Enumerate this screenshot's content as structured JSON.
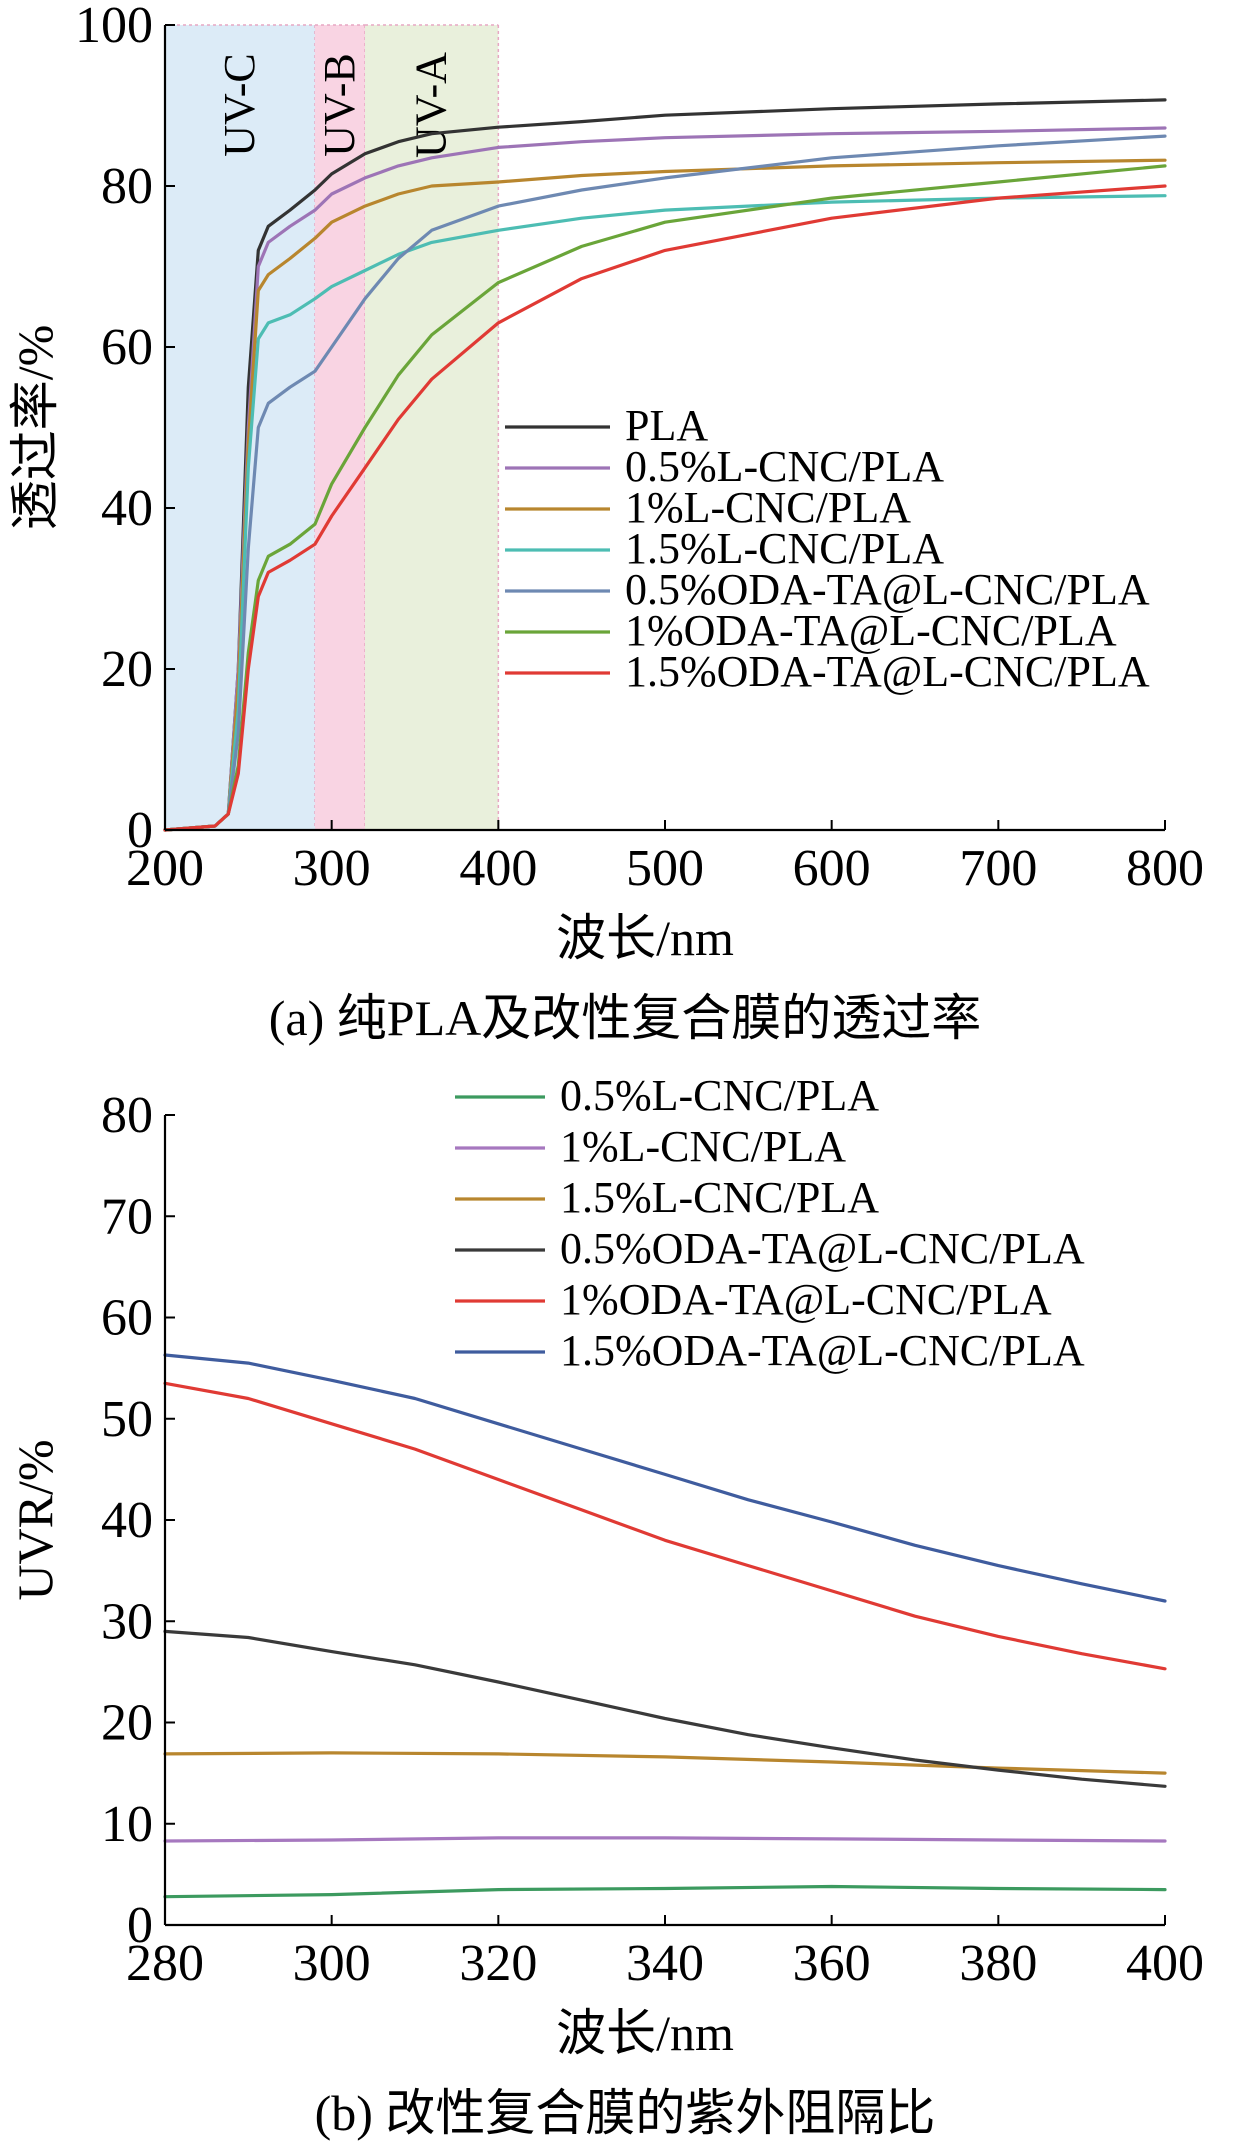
{
  "chart_data": [
    {
      "type": "line",
      "panel": "(a)",
      "caption": "(a) 纯PLA及改性复合膜的透过率",
      "xlabel": "波长/nm",
      "ylabel": "透过率/%",
      "xlim": [
        200,
        800
      ],
      "ylim": [
        0,
        100
      ],
      "xticks": [
        200,
        300,
        400,
        500,
        600,
        700,
        800
      ],
      "yticks": [
        0,
        20,
        40,
        60,
        80,
        100
      ],
      "grid": false,
      "legend_position": "right",
      "bands": [
        {
          "label": "UV-C",
          "range": [
            200,
            290
          ],
          "color": "#dcebf7"
        },
        {
          "label": "UV-B",
          "range": [
            290,
            320
          ],
          "color": "#f9d4e3"
        },
        {
          "label": "UV-A",
          "range": [
            320,
            400
          ],
          "color": "#e9f0dc"
        }
      ],
      "series": [
        {
          "name": "PLA",
          "color": "#333333",
          "points": [
            [
              200,
              0
            ],
            [
              230,
              0.5
            ],
            [
              238,
              2
            ],
            [
              244,
              20
            ],
            [
              250,
              55
            ],
            [
              256,
              72
            ],
            [
              262,
              75
            ],
            [
              275,
              77
            ],
            [
              290,
              79.5
            ],
            [
              300,
              81.5
            ],
            [
              320,
              84
            ],
            [
              340,
              85.5
            ],
            [
              360,
              86.5
            ],
            [
              400,
              87.3
            ],
            [
              450,
              88
            ],
            [
              500,
              88.8
            ],
            [
              600,
              89.6
            ],
            [
              700,
              90.2
            ],
            [
              800,
              90.7
            ]
          ]
        },
        {
          "name": "0.5%L-CNC/PLA",
          "color": "#9d74b6",
          "points": [
            [
              200,
              0
            ],
            [
              230,
              0.5
            ],
            [
              238,
              2
            ],
            [
              244,
              20
            ],
            [
              250,
              50
            ],
            [
              256,
              70
            ],
            [
              262,
              73
            ],
            [
              275,
              75
            ],
            [
              290,
              77
            ],
            [
              300,
              79
            ],
            [
              320,
              81
            ],
            [
              340,
              82.5
            ],
            [
              360,
              83.5
            ],
            [
              400,
              84.8
            ],
            [
              450,
              85.5
            ],
            [
              500,
              86
            ],
            [
              600,
              86.5
            ],
            [
              700,
              86.8
            ],
            [
              800,
              87.2
            ]
          ]
        },
        {
          "name": "1%L-CNC/PLA",
          "color": "#b8862e",
          "points": [
            [
              200,
              0
            ],
            [
              230,
              0.5
            ],
            [
              238,
              2
            ],
            [
              244,
              18
            ],
            [
              250,
              48
            ],
            [
              256,
              67
            ],
            [
              262,
              69
            ],
            [
              275,
              71
            ],
            [
              290,
              73.5
            ],
            [
              300,
              75.5
            ],
            [
              320,
              77.5
            ],
            [
              340,
              79
            ],
            [
              360,
              80
            ],
            [
              400,
              80.5
            ],
            [
              450,
              81.3
            ],
            [
              500,
              81.8
            ],
            [
              600,
              82.5
            ],
            [
              700,
              82.9
            ],
            [
              800,
              83.2
            ]
          ]
        },
        {
          "name": "1.5%L-CNC/PLA",
          "color": "#4dbdb3",
          "points": [
            [
              200,
              0
            ],
            [
              230,
              0.5
            ],
            [
              238,
              2
            ],
            [
              244,
              15
            ],
            [
              250,
              45
            ],
            [
              256,
              61
            ],
            [
              262,
              63
            ],
            [
              275,
              64
            ],
            [
              290,
              66
            ],
            [
              300,
              67.5
            ],
            [
              320,
              69.5
            ],
            [
              340,
              71.5
            ],
            [
              360,
              73
            ],
            [
              400,
              74.5
            ],
            [
              450,
              76
            ],
            [
              500,
              77
            ],
            [
              600,
              78
            ],
            [
              700,
              78.5
            ],
            [
              800,
              78.8
            ]
          ]
        },
        {
          "name": "0.5%ODA-TA@L-CNC/PLA",
          "color": "#6e89b2",
          "points": [
            [
              200,
              0
            ],
            [
              230,
              0.5
            ],
            [
              238,
              2
            ],
            [
              244,
              12
            ],
            [
              250,
              35
            ],
            [
              256,
              50
            ],
            [
              262,
              53
            ],
            [
              275,
              55
            ],
            [
              290,
              57
            ],
            [
              300,
              60
            ],
            [
              320,
              66
            ],
            [
              340,
              71
            ],
            [
              360,
              74.5
            ],
            [
              400,
              77.5
            ],
            [
              450,
              79.5
            ],
            [
              500,
              81
            ],
            [
              600,
              83.5
            ],
            [
              700,
              85
            ],
            [
              800,
              86.2
            ]
          ]
        },
        {
          "name": "1%ODA-TA@L-CNC/PLA",
          "color": "#6aa539",
          "points": [
            [
              200,
              0
            ],
            [
              230,
              0.5
            ],
            [
              238,
              2
            ],
            [
              244,
              8
            ],
            [
              250,
              22
            ],
            [
              256,
              31
            ],
            [
              262,
              34
            ],
            [
              275,
              35.5
            ],
            [
              290,
              38
            ],
            [
              300,
              43
            ],
            [
              320,
              50
            ],
            [
              340,
              56.5
            ],
            [
              360,
              61.5
            ],
            [
              400,
              68
            ],
            [
              450,
              72.5
            ],
            [
              500,
              75.5
            ],
            [
              600,
              78.5
            ],
            [
              700,
              80.5
            ],
            [
              800,
              82.5
            ]
          ]
        },
        {
          "name": "1.5%ODA-TA@L-CNC/PLA",
          "color": "#e03a34",
          "points": [
            [
              200,
              0
            ],
            [
              230,
              0.5
            ],
            [
              238,
              2
            ],
            [
              244,
              7
            ],
            [
              250,
              20
            ],
            [
              256,
              29
            ],
            [
              262,
              32
            ],
            [
              275,
              33.5
            ],
            [
              290,
              35.5
            ],
            [
              300,
              39
            ],
            [
              320,
              45
            ],
            [
              340,
              51
            ],
            [
              360,
              56
            ],
            [
              400,
              63
            ],
            [
              450,
              68.5
            ],
            [
              500,
              72
            ],
            [
              600,
              76
            ],
            [
              700,
              78.5
            ],
            [
              800,
              80
            ]
          ]
        }
      ],
      "legend": [
        "PLA",
        "0.5%L-CNC/PLA",
        "1%L-CNC/PLA",
        "1.5%L-CNC/PLA",
        "0.5%ODA-TA@L-CNC/PLA",
        "1%ODA-TA@L-CNC/PLA",
        "1.5%ODA-TA@L-CNC/PLA"
      ]
    },
    {
      "type": "line",
      "panel": "(b)",
      "caption": "(b) 改性复合膜的紫外阻隔比",
      "xlabel": "波长/nm",
      "ylabel": "UVR/%",
      "xlim": [
        280,
        400
      ],
      "ylim": [
        0,
        80
      ],
      "xticks": [
        280,
        300,
        320,
        340,
        360,
        380,
        400
      ],
      "yticks": [
        0,
        10,
        20,
        30,
        40,
        50,
        60,
        70,
        80
      ],
      "grid": false,
      "legend_position": "top-right",
      "series": [
        {
          "name": "0.5%L-CNC/PLA",
          "color": "#3c9a5f",
          "points": [
            [
              280,
              2.8
            ],
            [
              300,
              3.0
            ],
            [
              320,
              3.5
            ],
            [
              340,
              3.6
            ],
            [
              360,
              3.8
            ],
            [
              380,
              3.6
            ],
            [
              400,
              3.5
            ]
          ]
        },
        {
          "name": "1%L-CNC/PLA",
          "color": "#a678bf",
          "points": [
            [
              280,
              8.3
            ],
            [
              300,
              8.4
            ],
            [
              320,
              8.6
            ],
            [
              340,
              8.6
            ],
            [
              360,
              8.5
            ],
            [
              380,
              8.4
            ],
            [
              400,
              8.3
            ]
          ]
        },
        {
          "name": "1.5%L-CNC/PLA",
          "color": "#b8862e",
          "points": [
            [
              280,
              16.9
            ],
            [
              300,
              17.0
            ],
            [
              320,
              16.9
            ],
            [
              340,
              16.6
            ],
            [
              360,
              16.1
            ],
            [
              380,
              15.5
            ],
            [
              400,
              15.0
            ]
          ]
        },
        {
          "name": "0.5%ODA-TA@L-CNC/PLA",
          "color": "#3a3a3a",
          "points": [
            [
              280,
              29.0
            ],
            [
              290,
              28.4
            ],
            [
              300,
              27.0
            ],
            [
              310,
              25.7
            ],
            [
              320,
              24.0
            ],
            [
              330,
              22.2
            ],
            [
              340,
              20.4
            ],
            [
              350,
              18.8
            ],
            [
              360,
              17.5
            ],
            [
              370,
              16.3
            ],
            [
              380,
              15.3
            ],
            [
              390,
              14.4
            ],
            [
              400,
              13.7
            ]
          ]
        },
        {
          "name": "1%ODA-TA@L-CNC/PLA",
          "color": "#e03a34",
          "points": [
            [
              280,
              53.5
            ],
            [
              290,
              52.0
            ],
            [
              300,
              49.5
            ],
            [
              310,
              47.0
            ],
            [
              320,
              44.0
            ],
            [
              330,
              41.0
            ],
            [
              340,
              38.0
            ],
            [
              350,
              35.5
            ],
            [
              360,
              33.0
            ],
            [
              370,
              30.5
            ],
            [
              380,
              28.5
            ],
            [
              390,
              26.8
            ],
            [
              400,
              25.3
            ]
          ]
        },
        {
          "name": "1.5%ODA-TA@L-CNC/PLA",
          "color": "#3f5c9e",
          "points": [
            [
              280,
              56.3
            ],
            [
              290,
              55.5
            ],
            [
              300,
              53.8
            ],
            [
              310,
              52.0
            ],
            [
              320,
              49.5
            ],
            [
              330,
              47.0
            ],
            [
              340,
              44.5
            ],
            [
              350,
              42.0
            ],
            [
              360,
              39.8
            ],
            [
              370,
              37.5
            ],
            [
              380,
              35.5
            ],
            [
              390,
              33.7
            ],
            [
              400,
              32.0
            ]
          ]
        }
      ],
      "legend": [
        "0.5%L-CNC/PLA",
        "1%L-CNC/PLA",
        "1.5%L-CNC/PLA",
        "0.5%ODA-TA@L-CNC/PLA",
        "1%ODA-TA@L-CNC/PLA",
        "1.5%ODA-TA@L-CNC/PLA"
      ]
    }
  ]
}
